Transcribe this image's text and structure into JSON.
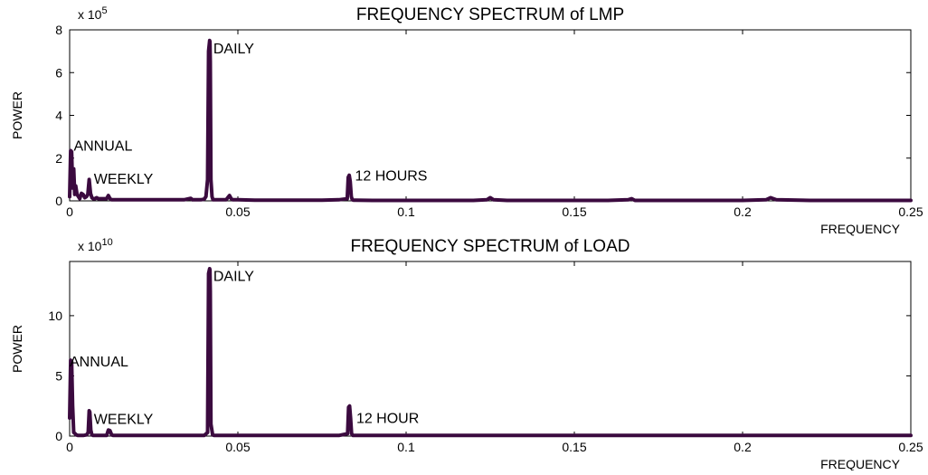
{
  "chart_data": [
    {
      "type": "line",
      "title": "FREQUENCY SPECTRUM of LMP",
      "xlabel": "FREQUENCY",
      "ylabel": "POWER",
      "y_scale_base": "x 10",
      "y_scale_exp": "5",
      "xlim": [
        0,
        0.25
      ],
      "ylim": [
        0,
        8
      ],
      "x_ticks": [
        0,
        0.05,
        0.1,
        0.15,
        0.2,
        0.25
      ],
      "x_tick_labels": [
        "0",
        "0.05",
        "0.1",
        "0.15",
        "0.2",
        "0.25"
      ],
      "y_ticks": [
        0,
        2,
        4,
        6,
        8
      ],
      "y_tick_labels": [
        "0",
        "2",
        "4",
        "6",
        "8"
      ],
      "grid": false,
      "line_color": "#3b0a3f",
      "series": [
        {
          "x": [
            0,
            0.0003,
            0.0006,
            0.0009,
            0.0012,
            0.0015,
            0.0018,
            0.0022,
            0.0026,
            0.003,
            0.0035,
            0.004,
            0.0045,
            0.005,
            0.0054,
            0.0058,
            0.0062,
            0.0066,
            0.007,
            0.0075,
            0.008,
            0.0085,
            0.009,
            0.0095,
            0.01,
            0.011,
            0.0115,
            0.012,
            0.0125,
            0.013,
            0.014,
            0.015,
            0.016,
            0.017,
            0.018,
            0.019,
            0.02,
            0.021,
            0.022,
            0.024,
            0.026,
            0.028,
            0.03,
            0.032,
            0.034,
            0.0355,
            0.036,
            0.0365,
            0.038,
            0.039,
            0.04,
            0.0405,
            0.041,
            0.0413,
            0.0416,
            0.0417,
            0.0418,
            0.042,
            0.0423,
            0.0426,
            0.043,
            0.0435,
            0.044,
            0.045,
            0.0465,
            0.047,
            0.0475,
            0.048,
            0.0485,
            0.049,
            0.05,
            0.055,
            0.06,
            0.065,
            0.07,
            0.075,
            0.08,
            0.0825,
            0.0828,
            0.0831,
            0.0834,
            0.0837,
            0.084,
            0.0845,
            0.085,
            0.09,
            0.1,
            0.11,
            0.12,
            0.124,
            0.125,
            0.126,
            0.13,
            0.14,
            0.15,
            0.16,
            0.166,
            0.167,
            0.168,
            0.18,
            0.19,
            0.2,
            0.207,
            0.2083,
            0.21,
            0.22,
            0.23,
            0.24,
            0.25
          ],
          "y": [
            0.2,
            2.35,
            2.3,
            0.6,
            1.5,
            0.3,
            0.7,
            0.3,
            0.2,
            0.1,
            0.35,
            0.3,
            0.15,
            0.2,
            0.3,
            1.0,
            0.35,
            0.15,
            0.1,
            0.1,
            0.15,
            0.1,
            0.1,
            0.1,
            0.1,
            0.1,
            0.25,
            0.1,
            0.05,
            0.05,
            0.05,
            0.05,
            0.05,
            0.05,
            0.05,
            0.05,
            0.05,
            0.05,
            0.05,
            0.05,
            0.05,
            0.05,
            0.05,
            0.05,
            0.05,
            0.1,
            0.12,
            0.05,
            0.05,
            0.05,
            0.08,
            0.2,
            1.0,
            7.0,
            7.5,
            7.45,
            6.5,
            1.0,
            0.2,
            0.05,
            0.05,
            0.05,
            0.05,
            0.05,
            0.05,
            0.15,
            0.25,
            0.1,
            0.05,
            0.05,
            0.05,
            0.03,
            0.03,
            0.03,
            0.03,
            0.03,
            0.05,
            0.1,
            1.1,
            1.2,
            0.9,
            0.2,
            0.05,
            0.03,
            0.03,
            0.02,
            0.02,
            0.02,
            0.02,
            0.05,
            0.15,
            0.05,
            0.02,
            0.02,
            0.02,
            0.02,
            0.05,
            0.1,
            0.02,
            0.02,
            0.02,
            0.02,
            0.05,
            0.15,
            0.05,
            0.02,
            0.02,
            0.02,
            0.02
          ]
        }
      ],
      "annotations": [
        {
          "text": "DAILY",
          "x": 0.0427,
          "y": 6.9
        },
        {
          "text": "ANNUAL",
          "x": 0.0012,
          "y": 2.35
        },
        {
          "text": "WEEKLY",
          "x": 0.0072,
          "y": 0.8
        },
        {
          "text": "12 HOURS",
          "x": 0.0848,
          "y": 0.95
        }
      ]
    },
    {
      "type": "line",
      "title": "FREQUENCY SPECTRUM  of LOAD",
      "xlabel": "FREQUENCY",
      "ylabel": "POWER",
      "y_scale_base": "x 10",
      "y_scale_exp": "10",
      "xlim": [
        0,
        0.25
      ],
      "ylim": [
        0,
        14.5
      ],
      "x_ticks": [
        0,
        0.05,
        0.1,
        0.15,
        0.2,
        0.25
      ],
      "x_tick_labels": [
        "0",
        "0.05",
        "0.1",
        "0.15",
        "0.2",
        "0.25"
      ],
      "y_ticks": [
        0,
        5,
        10
      ],
      "y_tick_labels": [
        "0",
        "5",
        "10"
      ],
      "grid": false,
      "line_color": "#3b0a3f",
      "series": [
        {
          "x": [
            0,
            0.0003,
            0.0006,
            0.0009,
            0.0012,
            0.0016,
            0.002,
            0.0025,
            0.003,
            0.004,
            0.005,
            0.0055,
            0.0058,
            0.006,
            0.0063,
            0.0066,
            0.007,
            0.008,
            0.009,
            0.01,
            0.011,
            0.0115,
            0.012,
            0.0125,
            0.013,
            0.015,
            0.02,
            0.025,
            0.03,
            0.035,
            0.04,
            0.041,
            0.0413,
            0.0416,
            0.0417,
            0.0418,
            0.042,
            0.0425,
            0.043,
            0.045,
            0.05,
            0.06,
            0.07,
            0.08,
            0.0826,
            0.0829,
            0.0832,
            0.0835,
            0.0838,
            0.0842,
            0.085,
            0.09,
            0.1,
            0.125,
            0.15,
            0.2,
            0.25
          ],
          "y": [
            1.5,
            6.3,
            6.2,
            2.5,
            0.3,
            0.2,
            0.1,
            0.05,
            0.05,
            0.05,
            0.1,
            0.3,
            2.1,
            2.0,
            0.5,
            0.1,
            0.05,
            0.05,
            0.05,
            0.05,
            0.05,
            0.5,
            0.45,
            0.1,
            0.05,
            0.05,
            0.05,
            0.05,
            0.05,
            0.05,
            0.05,
            0.3,
            13.5,
            13.9,
            13.8,
            12.0,
            1.0,
            0.1,
            0.05,
            0.05,
            0.05,
            0.05,
            0.05,
            0.05,
            0.2,
            2.4,
            2.5,
            1.5,
            0.2,
            0.05,
            0.05,
            0.05,
            0.05,
            0.05,
            0.05,
            0.05,
            0.05
          ]
        }
      ],
      "annotations": [
        {
          "text": "DAILY",
          "x": 0.0427,
          "y": 12.9
        },
        {
          "text": "ANNUAL",
          "x": 0.0,
          "y": 5.8
        },
        {
          "text": "WEEKLY",
          "x": 0.0072,
          "y": 1.0
        },
        {
          "text": "12 HOUR",
          "x": 0.0852,
          "y": 1.1
        }
      ]
    }
  ]
}
